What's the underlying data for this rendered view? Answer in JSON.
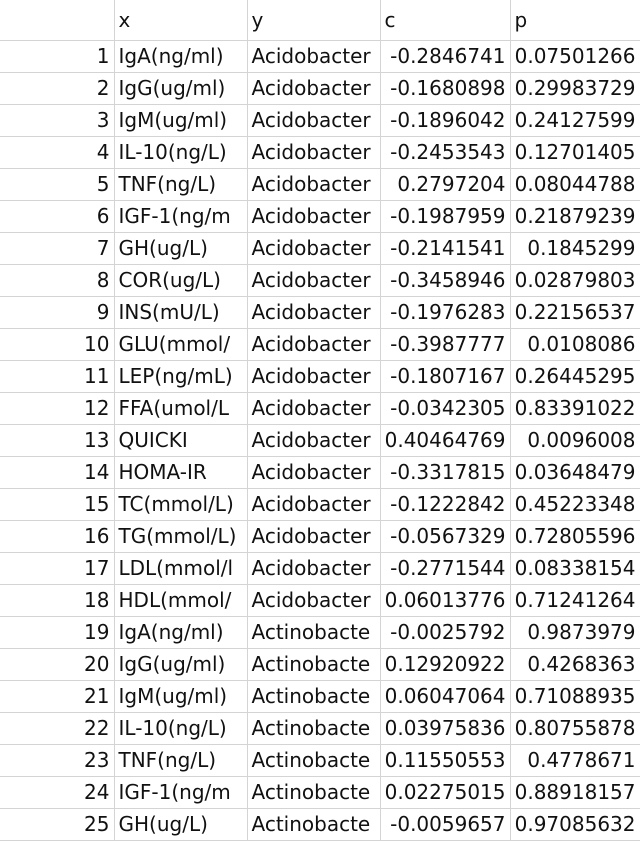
{
  "header": [
    "",
    "x",
    "y",
    "c",
    "p"
  ],
  "rows": [
    [
      "1",
      "IgA(ng/ml)",
      "Acidobacter",
      "-0.2846741",
      "0.07501266"
    ],
    [
      "2",
      "IgG(ug/ml)",
      "Acidobacter",
      "-0.1680898",
      "0.29983729"
    ],
    [
      "3",
      "IgM(ug/ml)",
      "Acidobacter",
      "-0.1896042",
      "0.24127599"
    ],
    [
      "4",
      "IL-10(ng/L)",
      "Acidobacter",
      "-0.2453543",
      "0.12701405"
    ],
    [
      "5",
      "TNF(ng/L)",
      "Acidobacter",
      "0.2797204",
      "0.08044788"
    ],
    [
      "6",
      "IGF-1(ng/m",
      "Acidobacter",
      "-0.1987959",
      "0.21879239"
    ],
    [
      "7",
      "GH(ug/L)",
      "Acidobacter",
      "-0.2141541",
      "0.1845299"
    ],
    [
      "8",
      "COR(ug/L)",
      "Acidobacter",
      "-0.3458946",
      "0.02879803"
    ],
    [
      "9",
      "INS(mU/L)",
      "Acidobacter",
      "-0.1976283",
      "0.22156537"
    ],
    [
      "10",
      "GLU(mmol/",
      "Acidobacter",
      "-0.3987777",
      "0.0108086"
    ],
    [
      "11",
      "LEP(ng/mL)",
      "Acidobacter",
      "-0.1807167",
      "0.26445295"
    ],
    [
      "12",
      "FFA(umol/L",
      "Acidobacter",
      "-0.0342305",
      "0.83391022"
    ],
    [
      "13",
      "QUICKI",
      "Acidobacter",
      "0.40464769",
      "0.0096008"
    ],
    [
      "14",
      "HOMA-IR",
      "Acidobacter",
      "-0.3317815",
      "0.03648479"
    ],
    [
      "15",
      "TC(mmol/L)",
      "Acidobacter",
      "-0.1222842",
      "0.45223348"
    ],
    [
      "16",
      "TG(mmol/L)",
      "Acidobacter",
      "-0.0567329",
      "0.72805596"
    ],
    [
      "17",
      "LDL(mmol/l",
      "Acidobacter",
      "-0.2771544",
      "0.08338154"
    ],
    [
      "18",
      "HDL(mmol/",
      "Acidobacter",
      "0.06013776",
      "0.71241264"
    ],
    [
      "19",
      "IgA(ng/ml)",
      "Actinobacte",
      "-0.0025792",
      "0.9873979"
    ],
    [
      "20",
      "IgG(ug/ml)",
      "Actinobacte",
      "0.12920922",
      "0.4268363"
    ],
    [
      "21",
      "IgM(ug/ml)",
      "Actinobacte",
      "0.06047064",
      "0.71088935"
    ],
    [
      "22",
      "IL-10(ng/L)",
      "Actinobacte",
      "0.03975836",
      "0.80755878"
    ],
    [
      "23",
      "TNF(ng/L)",
      "Actinobacte",
      "0.11550553",
      "0.4778671"
    ],
    [
      "24",
      "IGF-1(ng/m",
      "Actinobacte",
      "0.02275015",
      "0.88918157"
    ],
    [
      "25",
      "GH(ug/L)",
      "Actinobacte",
      "-0.0059657",
      "0.97085632"
    ]
  ]
}
